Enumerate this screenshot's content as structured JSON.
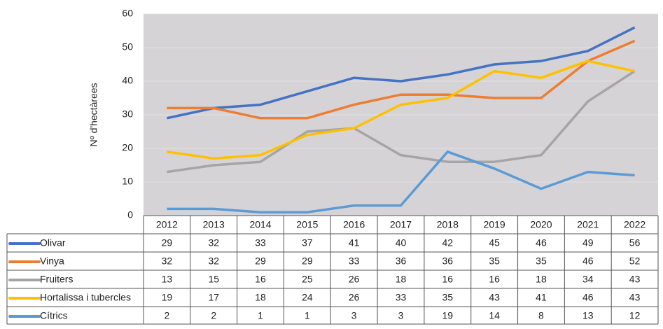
{
  "chart_data": {
    "type": "line",
    "y_label": "Nº d'hectàrees",
    "categories": [
      "2012",
      "2013",
      "2014",
      "2015",
      "2016",
      "2017",
      "2018",
      "2019",
      "2020",
      "2021",
      "2022"
    ],
    "series": [
      {
        "name": "Olivar",
        "color": "#4472c4",
        "values": [
          29,
          32,
          33,
          37,
          41,
          40,
          42,
          45,
          46,
          49,
          56
        ]
      },
      {
        "name": "Vinya",
        "color": "#ed7d31",
        "values": [
          32,
          32,
          29,
          29,
          33,
          36,
          36,
          35,
          35,
          46,
          52
        ]
      },
      {
        "name": "Fruiters",
        "color": "#a5a5a5",
        "values": [
          13,
          15,
          16,
          25,
          26,
          18,
          16,
          16,
          18,
          34,
          43
        ]
      },
      {
        "name": "Hortalissa i tubercles",
        "color": "#ffc000",
        "values": [
          19,
          17,
          18,
          24,
          26,
          33,
          35,
          43,
          41,
          46,
          43
        ]
      },
      {
        "name": "Cítrics",
        "color": "#5b9bd5",
        "values": [
          2,
          2,
          1,
          1,
          3,
          3,
          19,
          14,
          8,
          13,
          12
        ]
      }
    ],
    "ylim": [
      0,
      60
    ],
    "yticks": [
      0,
      10,
      20,
      30,
      40,
      50,
      60
    ],
    "grid": true
  }
}
